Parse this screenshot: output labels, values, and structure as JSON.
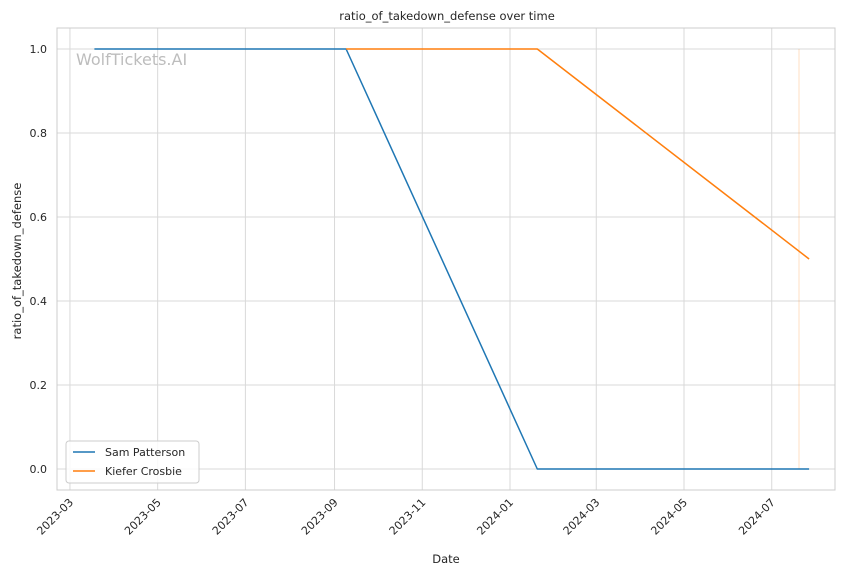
{
  "chart_data": {
    "type": "line",
    "title": "ratio_of_takedown_defense over time",
    "xlabel": "Date",
    "ylabel": "ratio_of_takedown_defense",
    "watermark": "WolfTickets.AI",
    "x_ticks": [
      "2023-03",
      "2023-05",
      "2023-07",
      "2023-09",
      "2023-11",
      "2024-01",
      "2024-03",
      "2024-05",
      "2024-07"
    ],
    "y_ticks": [
      "0.0",
      "0.2",
      "0.4",
      "0.6",
      "0.8",
      "1.0"
    ],
    "xlim": [
      "2023-02-20",
      "2024-08-14"
    ],
    "ylim": [
      -0.05,
      1.05
    ],
    "grid": true,
    "legend_position": "lower-left",
    "series": [
      {
        "name": "Sam Patterson",
        "color": "#1f77b4",
        "points": [
          {
            "x": "2023-03-18",
            "y": 1.0
          },
          {
            "x": "2023-09-09",
            "y": 1.0
          },
          {
            "x": "2024-01-20",
            "y": 0.0
          },
          {
            "x": "2024-07-27",
            "y": 0.0
          }
        ]
      },
      {
        "name": "Kiefer Crosbie",
        "color": "#ff7f0e",
        "points": [
          {
            "x": "2023-09-09",
            "y": 1.0
          },
          {
            "x": "2024-01-20",
            "y": 1.0
          },
          {
            "x": "2024-07-27",
            "y": 0.5
          }
        ]
      }
    ]
  }
}
